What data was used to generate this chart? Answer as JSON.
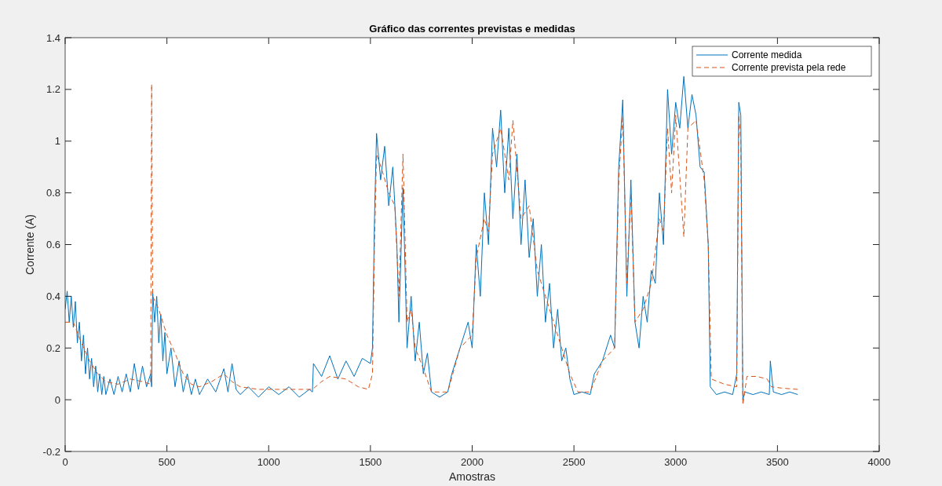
{
  "chart_data": {
    "type": "line",
    "title": "Gráfico das correntes previstas e medidas",
    "xlabel": "Amostras",
    "ylabel": "Corrente (A)",
    "xlim": [
      0,
      4000
    ],
    "xticks": [
      0,
      500,
      1000,
      1500,
      2000,
      2500,
      3000,
      3500,
      4000
    ],
    "ylim": [
      -0.2,
      1.4
    ],
    "yticks": [
      -0.2,
      0,
      0.2,
      0.4,
      0.6,
      0.8,
      1,
      1.2,
      1.4
    ],
    "legend": "top right",
    "grid": false,
    "series": [
      {
        "name": "Corrente medida",
        "color": "#0072bd",
        "line_style": "solid",
        "x": [
          0,
          10,
          20,
          30,
          40,
          50,
          60,
          70,
          80,
          90,
          100,
          110,
          120,
          130,
          140,
          150,
          160,
          170,
          180,
          190,
          200,
          220,
          240,
          260,
          280,
          300,
          320,
          340,
          360,
          380,
          400,
          420,
          425,
          430,
          440,
          450,
          460,
          470,
          480,
          490,
          500,
          520,
          540,
          560,
          580,
          600,
          620,
          640,
          660,
          700,
          740,
          780,
          800,
          820,
          840,
          860,
          900,
          950,
          1000,
          1050,
          1100,
          1150,
          1200,
          1215,
          1220,
          1260,
          1300,
          1340,
          1380,
          1420,
          1460,
          1500,
          1510,
          1520,
          1530,
          1550,
          1570,
          1590,
          1610,
          1630,
          1640,
          1660,
          1680,
          1700,
          1720,
          1740,
          1760,
          1780,
          1800,
          1840,
          1880,
          1900,
          1940,
          1980,
          2000,
          2020,
          2040,
          2060,
          2080,
          2100,
          2120,
          2140,
          2160,
          2180,
          2200,
          2220,
          2240,
          2260,
          2280,
          2300,
          2320,
          2340,
          2360,
          2380,
          2400,
          2420,
          2440,
          2460,
          2480,
          2500,
          2540,
          2580,
          2600,
          2640,
          2680,
          2700,
          2720,
          2740,
          2760,
          2780,
          2800,
          2820,
          2840,
          2860,
          2880,
          2900,
          2920,
          2940,
          2960,
          2980,
          3000,
          3020,
          3040,
          3060,
          3080,
          3100,
          3120,
          3140,
          3160,
          3170,
          3200,
          3240,
          3280,
          3300,
          3310,
          3320,
          3330,
          3340,
          3380,
          3420,
          3460,
          3465,
          3480,
          3520,
          3560,
          3600
        ],
        "values": [
          0.35,
          0.42,
          0.3,
          0.4,
          0.28,
          0.38,
          0.22,
          0.3,
          0.15,
          0.25,
          0.1,
          0.2,
          0.08,
          0.16,
          0.05,
          0.13,
          0.03,
          0.1,
          0.02,
          0.09,
          0.02,
          0.08,
          0.02,
          0.09,
          0.03,
          0.1,
          0.03,
          0.14,
          0.04,
          0.13,
          0.05,
          0.1,
          0.05,
          0.42,
          0.3,
          0.4,
          0.22,
          0.33,
          0.15,
          0.26,
          0.1,
          0.2,
          0.05,
          0.15,
          0.03,
          0.1,
          0.02,
          0.08,
          0.02,
          0.08,
          0.03,
          0.12,
          0.03,
          0.14,
          0.04,
          0.02,
          0.05,
          0.01,
          0.05,
          0.02,
          0.05,
          0.01,
          0.04,
          0.03,
          0.14,
          0.09,
          0.17,
          0.08,
          0.15,
          0.09,
          0.16,
          0.14,
          0.2,
          0.7,
          1.03,
          0.85,
          0.98,
          0.75,
          0.9,
          0.6,
          0.3,
          0.82,
          0.2,
          0.4,
          0.15,
          0.3,
          0.1,
          0.18,
          0.03,
          0.01,
          0.03,
          0.1,
          0.2,
          0.3,
          0.2,
          0.6,
          0.4,
          0.8,
          0.6,
          1.05,
          0.9,
          1.12,
          0.8,
          1.05,
          0.7,
          0.95,
          0.6,
          0.85,
          0.55,
          0.7,
          0.4,
          0.6,
          0.3,
          0.45,
          0.2,
          0.35,
          0.15,
          0.2,
          0.08,
          0.02,
          0.03,
          0.02,
          0.1,
          0.15,
          0.25,
          0.2,
          0.9,
          1.16,
          0.4,
          0.85,
          0.3,
          0.2,
          0.4,
          0.3,
          0.5,
          0.45,
          0.8,
          0.6,
          1.2,
          0.95,
          1.15,
          1.05,
          1.25,
          1.05,
          1.18,
          1.1,
          0.9,
          0.88,
          0.6,
          0.05,
          0.02,
          0.03,
          0.02,
          0.1,
          1.15,
          1.1,
          0,
          0.03,
          0.02,
          0.03,
          0.02,
          0.15,
          0.03,
          0.02,
          0.03,
          0.02
        ]
      },
      {
        "name": "Corrente prevista pela rede",
        "color": "#d95319",
        "line_style": "dashed",
        "x": [
          0,
          40,
          80,
          120,
          160,
          200,
          260,
          320,
          380,
          420,
          425,
          430,
          460,
          500,
          540,
          580,
          620,
          660,
          720,
          780,
          820,
          860,
          950,
          1050,
          1150,
          1215,
          1260,
          1300,
          1380,
          1440,
          1490,
          1510,
          1520,
          1530,
          1560,
          1590,
          1620,
          1640,
          1660,
          1680,
          1700,
          1720,
          1760,
          1800,
          1880,
          1940,
          2000,
          2020,
          2060,
          2080,
          2100,
          2140,
          2180,
          2200,
          2240,
          2280,
          2320,
          2360,
          2400,
          2440,
          2480,
          2520,
          2580,
          2640,
          2700,
          2720,
          2740,
          2760,
          2780,
          2800,
          2840,
          2880,
          2920,
          2940,
          2960,
          2980,
          3000,
          3040,
          3060,
          3100,
          3140,
          3160,
          3175,
          3240,
          3300,
          3310,
          3320,
          3330,
          3350,
          3400,
          3450,
          3470,
          3520,
          3600
        ],
        "values": [
          0.3,
          0.3,
          0.22,
          0.15,
          0.1,
          0.07,
          0.06,
          0.08,
          0.07,
          0.06,
          1.22,
          0.4,
          0.35,
          0.25,
          0.18,
          0.1,
          0.06,
          0.05,
          0.07,
          0.1,
          0.07,
          0.05,
          0.04,
          0.04,
          0.04,
          0.04,
          0.07,
          0.09,
          0.08,
          0.05,
          0.04,
          0.1,
          0.6,
          0.95,
          0.88,
          0.8,
          0.75,
          0.4,
          0.95,
          0.3,
          0.35,
          0.2,
          0.12,
          0.03,
          0.03,
          0.2,
          0.25,
          0.55,
          0.7,
          0.65,
          0.95,
          1.05,
          0.85,
          1.08,
          0.7,
          0.75,
          0.5,
          0.4,
          0.3,
          0.2,
          0.1,
          0.03,
          0.03,
          0.15,
          0.2,
          0.85,
          1.1,
          0.45,
          0.8,
          0.3,
          0.35,
          0.45,
          0.7,
          0.65,
          1.05,
          0.8,
          1.1,
          0.63,
          1.05,
          1.08,
          0.85,
          0.6,
          0.08,
          0.06,
          0.05,
          1.1,
          1,
          -0.02,
          0.09,
          0.09,
          0.08,
          0.05,
          0.045,
          0.04
        ]
      }
    ]
  }
}
